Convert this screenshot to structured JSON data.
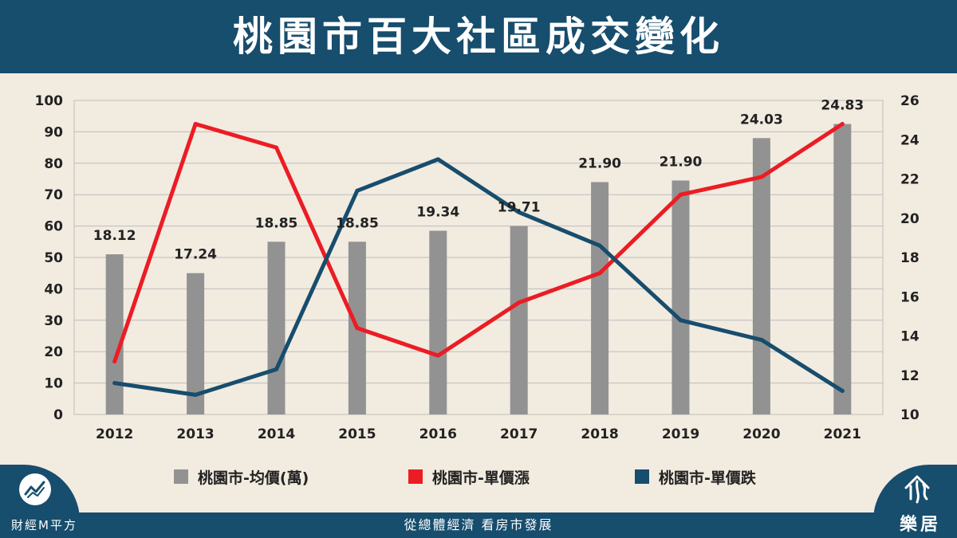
{
  "header": {
    "title": "桃園市百大社區成交變化"
  },
  "footer": {
    "brand_left": "財經M平方",
    "slogan": "從總體經濟 看房市發展",
    "brand_right": "樂居"
  },
  "colors": {
    "header_bg": "#174d6d",
    "bars": "#929292",
    "red_line": "#ec1c24",
    "blue_line": "#174d6d",
    "background": "#f2ebe0"
  },
  "legend": [
    {
      "label": "桃園市-均價(萬)",
      "color": "#929292"
    },
    {
      "label": "桃園市-單價漲",
      "color": "#ec1c24"
    },
    {
      "label": "桃園市-單價跌",
      "color": "#174d6d"
    }
  ],
  "chart_data": {
    "type": "bar+line",
    "categories": [
      "2012",
      "2013",
      "2014",
      "2015",
      "2016",
      "2017",
      "2018",
      "2019",
      "2020",
      "2021"
    ],
    "left_axis": {
      "ylim": [
        0,
        100
      ],
      "ticks": [
        "0",
        "10",
        "20",
        "30",
        "40",
        "50",
        "60",
        "70",
        "80",
        "90",
        "100"
      ]
    },
    "right_axis": {
      "ylim": [
        10,
        26
      ],
      "ticks": [
        "10",
        "12",
        "14",
        "16",
        "18",
        "20",
        "22",
        "24",
        "26"
      ]
    },
    "grid": true,
    "legend_position": "bottom",
    "series": [
      {
        "name": "桃園市-均價(萬)",
        "type": "bar",
        "axis": "left",
        "values": [
          51,
          45,
          55,
          55,
          58.5,
          60,
          74,
          74.5,
          88,
          92.5
        ]
      },
      {
        "name": "桃園市-單價漲",
        "type": "line",
        "axis": "right",
        "values": [
          12.7,
          24.8,
          23.6,
          14.4,
          13,
          15.7,
          17.2,
          21.2,
          22.1,
          24.8
        ]
      },
      {
        "name": "桃園市-單價跌",
        "type": "line",
        "axis": "right",
        "values": [
          11.6,
          11.0,
          12.3,
          21.4,
          23.0,
          20.3,
          18.6,
          14.8,
          13.8,
          11.2
        ]
      }
    ],
    "data_labels": [
      "18.12",
      "17.24",
      "18.85",
      "18.85",
      "19.34",
      "19.71",
      "21.90",
      "21.90",
      "24.03",
      "24.83"
    ]
  }
}
